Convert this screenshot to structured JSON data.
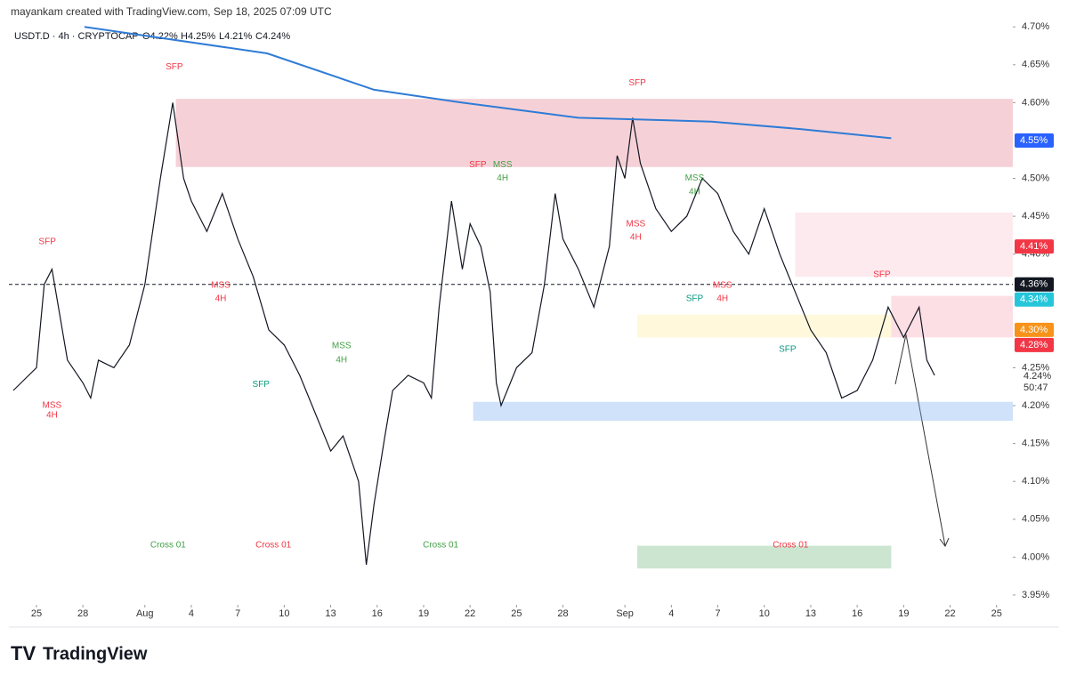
{
  "header": {
    "credit": "mayankam created with TradingView.com, Sep 18, 2025 07:09 UTC",
    "symbol": "USDT.D · 4h · CRYPTOCAP",
    "ohlc": [
      "O4.22%",
      "H4.25%",
      "L4.21%",
      "C4.24%"
    ]
  },
  "footer": "TradingView",
  "chart_data": {
    "type": "line",
    "xlim": [
      -1.78,
      63.05
    ],
    "xticks": [
      {
        "value": 0,
        "label": "25"
      },
      {
        "value": 3,
        "label": "28"
      },
      {
        "value": 7,
        "label": "Aug"
      },
      {
        "value": 10,
        "label": "4"
      },
      {
        "value": 13,
        "label": "7"
      },
      {
        "value": 16,
        "label": "10"
      },
      {
        "value": 19,
        "label": "13"
      },
      {
        "value": 22,
        "label": "16"
      },
      {
        "value": 25,
        "label": "19"
      },
      {
        "value": 28,
        "label": "22"
      },
      {
        "value": 31,
        "label": "25"
      },
      {
        "value": 34,
        "label": "28"
      },
      {
        "value": 38,
        "label": "Sep"
      },
      {
        "value": 41,
        "label": "4"
      },
      {
        "value": 44,
        "label": "7"
      },
      {
        "value": 47,
        "label": "10"
      },
      {
        "value": 50,
        "label": "13"
      },
      {
        "value": 53,
        "label": "16"
      },
      {
        "value": 56,
        "label": "19"
      },
      {
        "value": 59,
        "label": "22"
      },
      {
        "value": 62,
        "label": "25"
      }
    ],
    "ylim": [
      3.937,
      4.712
    ],
    "yticks": [
      {
        "value": 3.95,
        "label": "3.95%"
      },
      {
        "value": 4.0,
        "label": "4.00%"
      },
      {
        "value": 4.05,
        "label": "4.05%"
      },
      {
        "value": 4.1,
        "label": "4.10%"
      },
      {
        "value": 4.15,
        "label": "4.15%"
      },
      {
        "value": 4.2,
        "label": "4.20%"
      },
      {
        "value": 4.25,
        "label": "4.25%"
      },
      {
        "value": 4.4,
        "label": "4.40%"
      },
      {
        "value": 4.45,
        "label": "4.45%"
      },
      {
        "value": 4.5,
        "label": "4.50%"
      },
      {
        "value": 4.6,
        "label": "4.60%"
      },
      {
        "value": 4.65,
        "label": "4.65%"
      },
      {
        "value": 4.7,
        "label": "4.70%"
      }
    ],
    "series": [
      {
        "color": "#131722",
        "x": [
          -1.5,
          0,
          0.5,
          1,
          2,
          3,
          3.5,
          4,
          5,
          6,
          7,
          8,
          8.8,
          9.5,
          10,
          11,
          12,
          13,
          14,
          15,
          16,
          17,
          18,
          19,
          19.8,
          20.8,
          21.3,
          21.8,
          22.5,
          23,
          24,
          25,
          25.5,
          26,
          26.8,
          27.5,
          28,
          28.7,
          29.3,
          29.7,
          30,
          31,
          32,
          32.8,
          33.5,
          34,
          35,
          36,
          37,
          37.5,
          38,
          38.5,
          39,
          40,
          41,
          42,
          43,
          44,
          45,
          46,
          47,
          48,
          49,
          50,
          51,
          52,
          53,
          54,
          55,
          56,
          57,
          57.5,
          58
        ],
        "values": [
          4.22,
          4.25,
          4.36,
          4.38,
          4.26,
          4.23,
          4.21,
          4.26,
          4.25,
          4.28,
          4.36,
          4.5,
          4.6,
          4.5,
          4.47,
          4.43,
          4.48,
          4.42,
          4.37,
          4.3,
          4.28,
          4.24,
          4.19,
          4.14,
          4.16,
          4.1,
          3.99,
          4.07,
          4.16,
          4.22,
          4.24,
          4.23,
          4.21,
          4.33,
          4.47,
          4.38,
          4.44,
          4.41,
          4.35,
          4.23,
          4.2,
          4.25,
          4.27,
          4.36,
          4.48,
          4.42,
          4.38,
          4.33,
          4.41,
          4.53,
          4.5,
          4.58,
          4.52,
          4.46,
          4.43,
          4.45,
          4.5,
          4.48,
          4.43,
          4.4,
          4.46,
          4.4,
          4.35,
          4.3,
          4.27,
          4.21,
          4.22,
          4.26,
          4.33,
          4.29,
          4.33,
          4.26,
          4.24
        ]
      },
      {
        "color": "#2f7bd6",
        "x": [
          3.1,
          14.9,
          21.8,
          27.5,
          35,
          43.6,
          49.4,
          55.2
        ],
        "values": [
          4.7,
          4.665,
          4.617,
          4.6,
          4.58,
          4.575,
          4.565,
          4.553
        ]
      }
    ],
    "zones": [
      {
        "x": [
          9,
          63.05
        ],
        "y": [
          4.515,
          4.605
        ],
        "color": "rgba(220,90,110,0.28)"
      },
      {
        "x": [
          49,
          63.05
        ],
        "y": [
          4.37,
          4.455
        ],
        "color": "rgba(245,150,170,0.2)"
      },
      {
        "x": [
          55.2,
          63.05
        ],
        "y": [
          4.29,
          4.345
        ],
        "color": "rgba(245,150,170,0.3)"
      },
      {
        "x": [
          38.8,
          55.2
        ],
        "y": [
          4.29,
          4.32
        ],
        "color": "rgba(255,235,150,0.35)"
      },
      {
        "x": [
          28.2,
          63.05
        ],
        "y": [
          4.18,
          4.205
        ],
        "color": "rgba(120,170,240,0.35)"
      },
      {
        "x": [
          38.8,
          55.2
        ],
        "y": [
          3.985,
          4.015
        ],
        "color": "rgba(110,180,120,0.35)"
      }
    ],
    "hline": 4.36,
    "price_labels": [
      {
        "value": 4.55,
        "label": "4.55%",
        "color": "#2962ff"
      },
      {
        "value": 4.41,
        "label": "4.41%",
        "color": "#f23645"
      },
      {
        "value": 4.36,
        "label": "4.36%",
        "color": "#131722"
      },
      {
        "value": 4.34,
        "label": "4.34%",
        "color": "#26c6da"
      },
      {
        "value": 4.3,
        "label": "4.30%",
        "color": "#f7931a"
      },
      {
        "value": 4.28,
        "label": "4.28%",
        "color": "#f23645"
      }
    ],
    "last_price": {
      "label": "4.24%",
      "countdown": "50:47"
    },
    "annotations": [
      {
        "text": "SFP",
        "x": 0.7,
        "y": 4.416,
        "color": "#f23645"
      },
      {
        "text": "SFP",
        "x": 8.9,
        "y": 4.647,
        "color": "#f23645"
      },
      {
        "text": "SFP",
        "x": 38.8,
        "y": 4.626,
        "color": "#f23645"
      },
      {
        "text": "SFP",
        "x": 28.5,
        "y": 4.518,
        "color": "#f23645"
      },
      {
        "text": "SFP",
        "x": 54.6,
        "y": 4.373,
        "color": "#f23645"
      },
      {
        "text": "SFP",
        "x": 14.5,
        "y": 4.228,
        "color": "#089981"
      },
      {
        "text": "SFP",
        "x": 42.5,
        "y": 4.341,
        "color": "#089981"
      },
      {
        "text": "SFP",
        "x": 48.5,
        "y": 4.274,
        "color": "#089981"
      },
      {
        "text": "MSS",
        "x": 30.1,
        "y": 4.518,
        "color": "#43a047"
      },
      {
        "text": "4H",
        "x": 30.1,
        "y": 4.5,
        "color": "#43a047"
      },
      {
        "text": "MSS",
        "x": 19.7,
        "y": 4.279,
        "color": "#43a047"
      },
      {
        "text": "4H",
        "x": 19.7,
        "y": 4.26,
        "color": "#43a047"
      },
      {
        "text": "MSS",
        "x": 11.9,
        "y": 4.359,
        "color": "#f23645"
      },
      {
        "text": "4H",
        "x": 11.9,
        "y": 4.341,
        "color": "#f23645"
      },
      {
        "text": "MSS",
        "x": 44.3,
        "y": 4.359,
        "color": "#f23645"
      },
      {
        "text": "4H",
        "x": 44.3,
        "y": 4.341,
        "color": "#f23645"
      },
      {
        "text": "MSS",
        "x": 42.5,
        "y": 4.5,
        "color": "#43a047"
      },
      {
        "text": "4H",
        "x": 42.5,
        "y": 4.482,
        "color": "#43a047"
      },
      {
        "text": "MSS",
        "x": 38.7,
        "y": 4.44,
        "color": "#f23645"
      },
      {
        "text": "4H",
        "x": 38.7,
        "y": 4.422,
        "color": "#f23645"
      },
      {
        "text": "MSS",
        "x": 1,
        "y": 4.2,
        "color": "#f23645"
      },
      {
        "text": "4H",
        "x": 1,
        "y": 4.187,
        "color": "#f23645"
      },
      {
        "text": "Cross 01",
        "x": 8.5,
        "y": 4.016,
        "color": "#43a047"
      },
      {
        "text": "Cross 01",
        "x": 15.3,
        "y": 4.016,
        "color": "#f23645"
      },
      {
        "text": "Cross 01",
        "x": 26.1,
        "y": 4.016,
        "color": "#43a047"
      },
      {
        "text": "Cross 01",
        "x": 48.7,
        "y": 4.016,
        "color": "#f23645"
      }
    ]
  }
}
